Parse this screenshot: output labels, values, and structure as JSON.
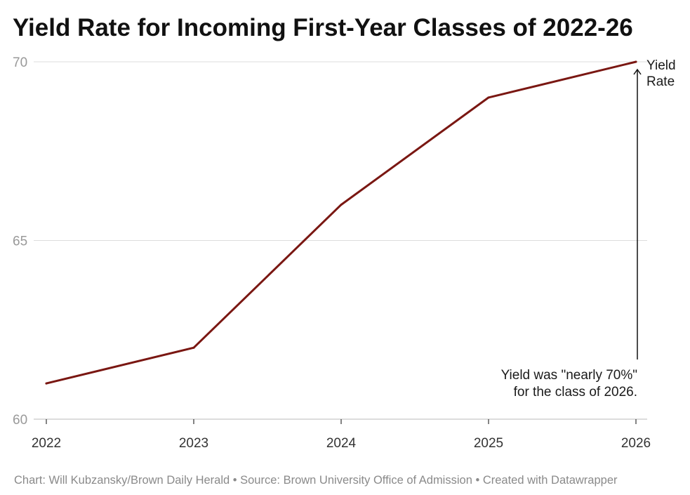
{
  "chart_data": {
    "type": "line",
    "title": "Yield Rate for Incoming First-Year Classes of 2022-26",
    "categories": [
      "2022",
      "2023",
      "2024",
      "2025",
      "2026"
    ],
    "series": [
      {
        "values": [
          61,
          62,
          66,
          69,
          70
        ],
        "color": "#7a1712"
      }
    ],
    "ylim": [
      60,
      70
    ],
    "yticks": [
      "60",
      "65",
      "70"
    ],
    "grid": true,
    "annotations": {
      "series_label": [
        "Yield",
        "Rate"
      ],
      "note": [
        "Yield was \"nearly 70%\"",
        "for the class of 2026."
      ]
    },
    "colors": {
      "line": "#7a1712",
      "grid": "#dddddd",
      "axis": "#c8c8c8",
      "footer_text": "#8a8a8a"
    }
  },
  "footer": "Chart: Will Kubzansky/Brown Daily Herald • Source: Brown University Office of Admission • Created with Datawrapper"
}
